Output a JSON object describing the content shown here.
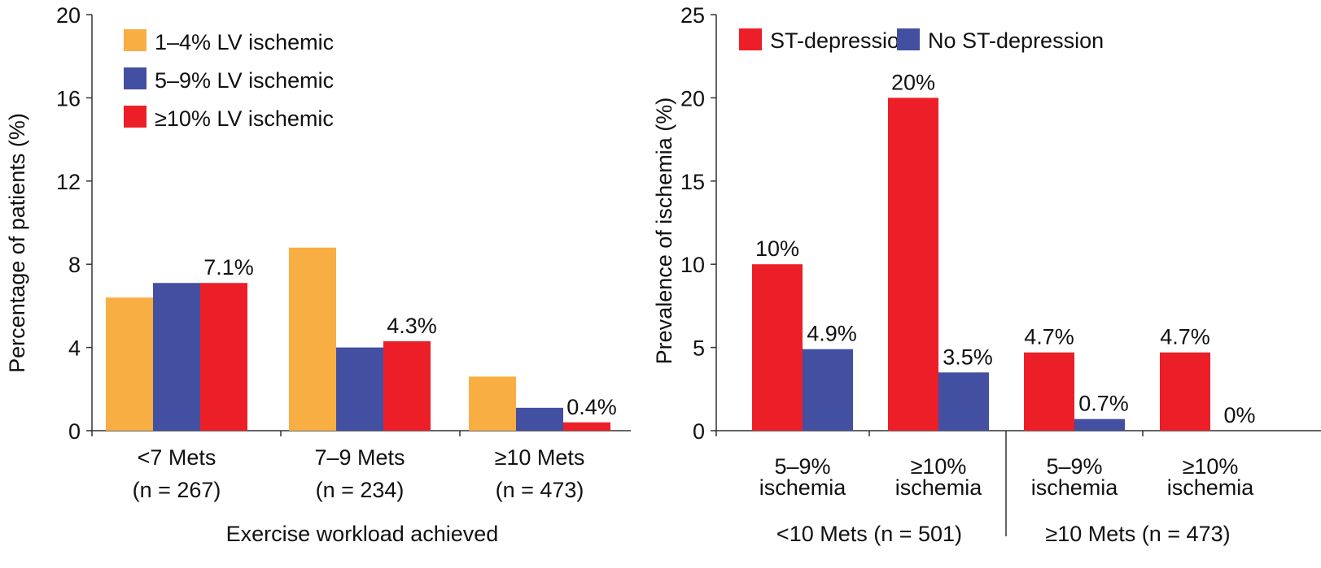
{
  "chart_data": [
    {
      "type": "bar",
      "title": "",
      "xlabel": "Exercise workload achieved",
      "ylabel": "Percentage of patients (%)",
      "ylim": [
        0,
        20
      ],
      "yticks": [
        0,
        4,
        8,
        12,
        16,
        20
      ],
      "categories": [
        [
          "<7 Mets",
          "(n = 267)"
        ],
        [
          "7–9 Mets",
          "(n = 234)"
        ],
        [
          "≥10 Mets",
          "(n = 473)"
        ]
      ],
      "legend_position": "top-left",
      "series": [
        {
          "name": "1–4% LV ischemic",
          "color": "#f9ae43",
          "values": [
            6.4,
            8.8,
            2.6
          ],
          "labels": [
            "",
            "",
            ""
          ]
        },
        {
          "name": "5–9% LV ischemic",
          "color": "#434fa0",
          "values": [
            7.1,
            4.0,
            1.1
          ],
          "labels": [
            "",
            "",
            ""
          ]
        },
        {
          "name": "≥10% LV ischemic",
          "color": "#ec1f28",
          "values": [
            7.1,
            4.3,
            0.4
          ],
          "labels": [
            "7.1%",
            "4.3%",
            "0.4%"
          ]
        }
      ]
    },
    {
      "type": "bar",
      "title": "",
      "xlabel": "",
      "ylabel": "Prevalence of ischemia (%)",
      "ylim": [
        0,
        25
      ],
      "yticks": [
        0,
        5,
        10,
        15,
        20,
        25
      ],
      "categories": [
        [
          "5–9%",
          "ischemia"
        ],
        [
          "≥10%",
          "ischemia"
        ],
        [
          "5–9%",
          "ischemia"
        ],
        [
          "≥10%",
          "ischemia"
        ]
      ],
      "groups": [
        "<10 Mets (n = 501)",
        "≥10 Mets (n = 473)"
      ],
      "legend_position": "top",
      "series": [
        {
          "name": "ST-depression",
          "color": "#ec1f28",
          "values": [
            10,
            20,
            4.7,
            4.7
          ],
          "labels": [
            "10%",
            "20%",
            "4.7%",
            "4.7%"
          ]
        },
        {
          "name": "No ST-depression",
          "color": "#434fa0",
          "values": [
            4.9,
            3.5,
            0.7,
            0
          ],
          "labels": [
            "4.9%",
            "3.5%",
            "0.7%",
            "0%"
          ]
        }
      ]
    }
  ]
}
